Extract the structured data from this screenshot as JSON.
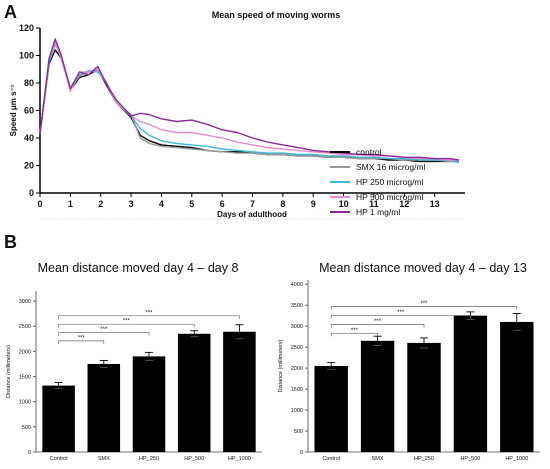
{
  "panels": {
    "a": "A",
    "b": "B"
  },
  "chart_data": [
    {
      "type": "line",
      "title": "Mean speed of moving worms",
      "xlabel": "Days of adulthood",
      "ylabel": "Speed μm s⁻¹",
      "xlim": [
        0,
        14
      ],
      "ylim": [
        0,
        120
      ],
      "xticks": [
        0,
        1,
        2,
        3,
        4,
        5,
        6,
        7,
        8,
        9,
        10,
        11,
        12,
        13
      ],
      "yticks": [
        0,
        20,
        40,
        60,
        80,
        100,
        120
      ],
      "legend_position": "right",
      "x": [
        0,
        0.3,
        0.5,
        0.7,
        1,
        1.3,
        1.6,
        1.9,
        2.2,
        2.5,
        3,
        3.3,
        3.6,
        4,
        4.5,
        5,
        5.5,
        6,
        6.5,
        7,
        7.5,
        8,
        8.5,
        9,
        9.5,
        10,
        10.5,
        11,
        11.5,
        12,
        12.5,
        13,
        13.5,
        13.8
      ],
      "series": [
        {
          "name": "control",
          "color": "#000000",
          "values": [
            43,
            94,
            104,
            98,
            75,
            84,
            86,
            90,
            78,
            66,
            55,
            42,
            38,
            35,
            34,
            33,
            31,
            30,
            30,
            29,
            28,
            28,
            27,
            27,
            26,
            26,
            25,
            25,
            24,
            24,
            23,
            23,
            23,
            23
          ]
        },
        {
          "name": "SMX 16 microg/ml",
          "color": "#9a9a9a",
          "values": [
            43,
            96,
            110,
            98,
            76,
            85,
            88,
            90,
            80,
            66,
            57,
            40,
            36,
            34,
            33,
            32,
            31,
            30,
            29,
            29,
            28,
            28,
            27,
            27,
            26,
            26,
            25,
            25,
            25,
            24,
            24,
            24,
            23,
            23
          ]
        },
        {
          "name": "HP 250 microg/ml",
          "color": "#3fb7d9",
          "values": [
            43,
            95,
            108,
            99,
            75,
            86,
            89,
            88,
            80,
            66,
            56,
            47,
            42,
            38,
            36,
            35,
            34,
            32,
            31,
            30,
            29,
            29,
            28,
            28,
            27,
            27,
            26,
            26,
            25,
            25,
            24,
            24,
            24,
            22
          ]
        },
        {
          "name": "HP 500 microg/ml",
          "color": "#e58ccf",
          "values": [
            43,
            97,
            109,
            98,
            74,
            88,
            88,
            90,
            79,
            66,
            56,
            52,
            50,
            46,
            44,
            44,
            42,
            40,
            37,
            35,
            33,
            32,
            31,
            30,
            29,
            28,
            28,
            27,
            27,
            26,
            25,
            25,
            24,
            24
          ]
        },
        {
          "name": "HP 1 mg/ml",
          "color": "#8b2a9e",
          "values": [
            43,
            98,
            112,
            100,
            76,
            88,
            86,
            92,
            79,
            68,
            56,
            58,
            57,
            54,
            52,
            53,
            50,
            46,
            44,
            40,
            37,
            35,
            33,
            31,
            30,
            29,
            28,
            28,
            27,
            26,
            26,
            25,
            25,
            24
          ]
        }
      ]
    },
    {
      "type": "bar",
      "title": "Mean distance moved day 4 – day 8",
      "xlabel": "",
      "ylabel": "Distance (millimeters)",
      "ylim": [
        0,
        3200
      ],
      "yticks": [
        0,
        500,
        1000,
        1500,
        2000,
        2500,
        3000
      ],
      "categories": [
        "Control",
        "SMX",
        "HP_250",
        "HP_500",
        "HP_1000"
      ],
      "values": [
        1320,
        1750,
        1900,
        2350,
        2390
      ],
      "errors": [
        60,
        70,
        80,
        60,
        140
      ],
      "significance": [
        {
          "from": 0,
          "to": 1,
          "label": "***"
        },
        {
          "from": 0,
          "to": 2,
          "label": "***"
        },
        {
          "from": 0,
          "to": 3,
          "label": "***"
        },
        {
          "from": 0,
          "to": 4,
          "label": "***"
        }
      ]
    },
    {
      "type": "bar",
      "title": "Mean distance moved day 4 – day 13",
      "xlabel": "",
      "ylabel": "Distance (millimeters)",
      "ylim": [
        0,
        4100
      ],
      "yticks": [
        0,
        500,
        1000,
        1500,
        2000,
        2500,
        3000,
        3500,
        4000
      ],
      "categories": [
        "Control",
        "SMX",
        "HP_250",
        "HP_500",
        "HP_1000"
      ],
      "values": [
        2050,
        2650,
        2600,
        3250,
        3100
      ],
      "errors": [
        80,
        110,
        120,
        90,
        200
      ],
      "significance": [
        {
          "from": 0,
          "to": 1,
          "label": "***"
        },
        {
          "from": 0,
          "to": 2,
          "label": "***"
        },
        {
          "from": 0,
          "to": 3,
          "label": "***"
        },
        {
          "from": 0,
          "to": 4,
          "label": "***"
        }
      ]
    }
  ]
}
